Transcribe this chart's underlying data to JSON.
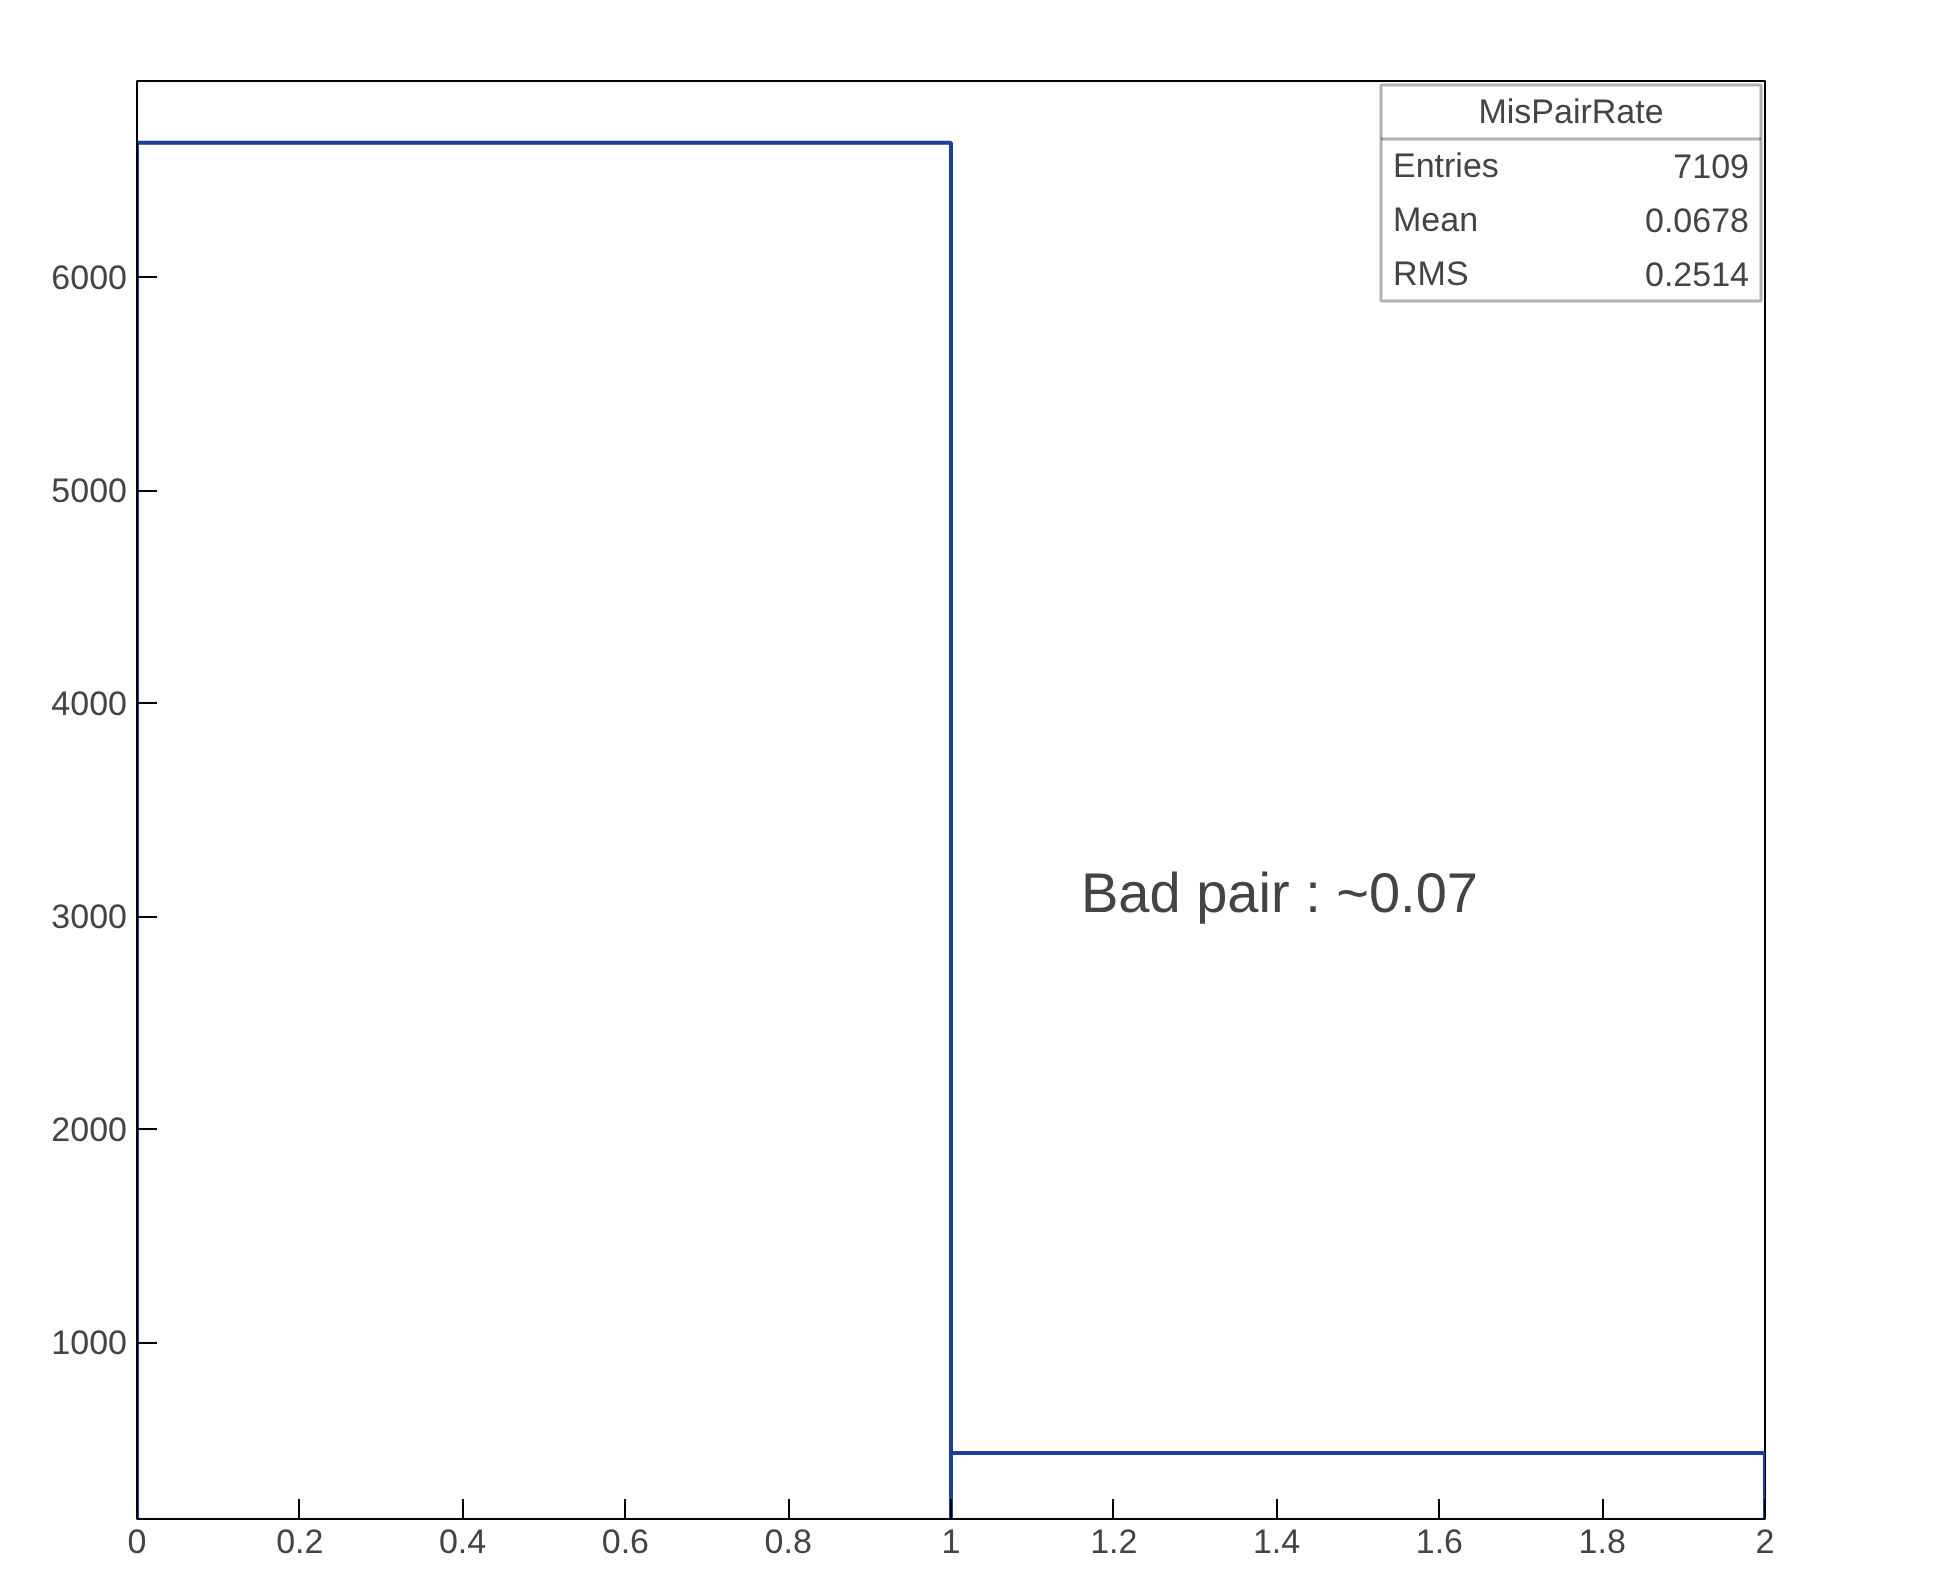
{
  "chart_data": {
    "type": "histogram",
    "title": "MisPairRate",
    "bins": [
      0,
      1,
      2
    ],
    "values": [
      6630,
      480
    ],
    "color": "#1f3f9f",
    "xlim": [
      0,
      2
    ],
    "xticks": [
      0,
      0.2,
      0.4,
      0.6,
      0.8,
      1,
      1.2,
      1.4,
      1.6,
      1.8,
      2
    ],
    "ylim": [
      170,
      6920
    ],
    "yticks": [
      1000,
      2000,
      3000,
      4000,
      5000,
      6000
    ],
    "grid": false,
    "annotations": [
      "Entries",
      "7109",
      "Mean",
      "0.0678",
      "RMS",
      "0.2514",
      "Bad pair : ~0.07"
    ]
  }
}
